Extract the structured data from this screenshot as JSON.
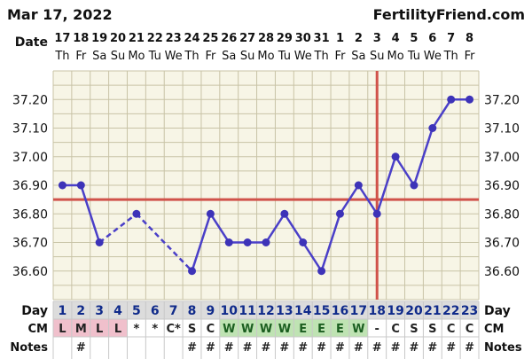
{
  "header": {
    "date_text": "Mar 17, 2022",
    "site_text": "FertilityFriend.com"
  },
  "labels": {
    "date": "Date",
    "day": "Day",
    "cm": "CM",
    "notes": "Notes"
  },
  "chart_data": {
    "type": "line",
    "ylabel": "",
    "xlabel": "",
    "ylim": [
      36.5,
      37.3
    ],
    "y_ticks": [
      "36.60",
      "36.70",
      "36.80",
      "36.90",
      "37.00",
      "37.10",
      "37.20"
    ],
    "dates": [
      "17",
      "18",
      "19",
      "20",
      "21",
      "22",
      "23",
      "24",
      "25",
      "26",
      "27",
      "28",
      "29",
      "30",
      "31",
      "1",
      "2",
      "3",
      "4",
      "5",
      "6",
      "7",
      "8"
    ],
    "weekdays": [
      "Th",
      "Fr",
      "Sa",
      "Su",
      "Mo",
      "Tu",
      "We",
      "Th",
      "Fr",
      "Sa",
      "Su",
      "Mo",
      "Tu",
      "We",
      "Th",
      "Fr",
      "Sa",
      "Su",
      "Mo",
      "Tu",
      "We",
      "Th",
      "Fr"
    ],
    "days": [
      "1",
      "2",
      "3",
      "4",
      "5",
      "6",
      "7",
      "8",
      "9",
      "10",
      "11",
      "12",
      "13",
      "14",
      "15",
      "16",
      "17",
      "18",
      "19",
      "20",
      "21",
      "22",
      "23"
    ],
    "temperatures": [
      36.9,
      36.9,
      36.7,
      null,
      36.8,
      null,
      null,
      36.6,
      36.8,
      36.7,
      36.7,
      36.7,
      36.8,
      36.7,
      36.6,
      36.8,
      36.9,
      36.8,
      37.0,
      36.9,
      37.1,
      37.2,
      37.2
    ],
    "dashed_segments": [
      [
        3,
        5
      ],
      [
        5,
        8
      ]
    ],
    "coverline": 36.85,
    "ovulation_day": 18,
    "cm": [
      "L",
      "M",
      "L",
      "L",
      "*",
      "*",
      "C*",
      "S",
      "C",
      "W",
      "W",
      "W",
      "W",
      "E",
      "E",
      "E",
      "W",
      "-",
      "C",
      "S",
      "S",
      "C",
      "C"
    ],
    "notes": [
      "",
      "#",
      "",
      "",
      "",
      "",
      "",
      "#",
      "#",
      "#",
      "#",
      "#",
      "#",
      "#",
      "#",
      "#",
      "#",
      "#",
      "#",
      "#",
      "#",
      "#",
      "#"
    ],
    "colors": {
      "line": "#4a3fc8",
      "point": "#3d33b8",
      "coverline": "#d0524a",
      "grid": "#c8c3a6",
      "plot_bg": "#f7f5e6",
      "cm_pink": "#f0c0cc",
      "cm_green": "#bfe3b3",
      "day_row": "#dcdcdc",
      "date_text": "#0f2a8a"
    }
  }
}
